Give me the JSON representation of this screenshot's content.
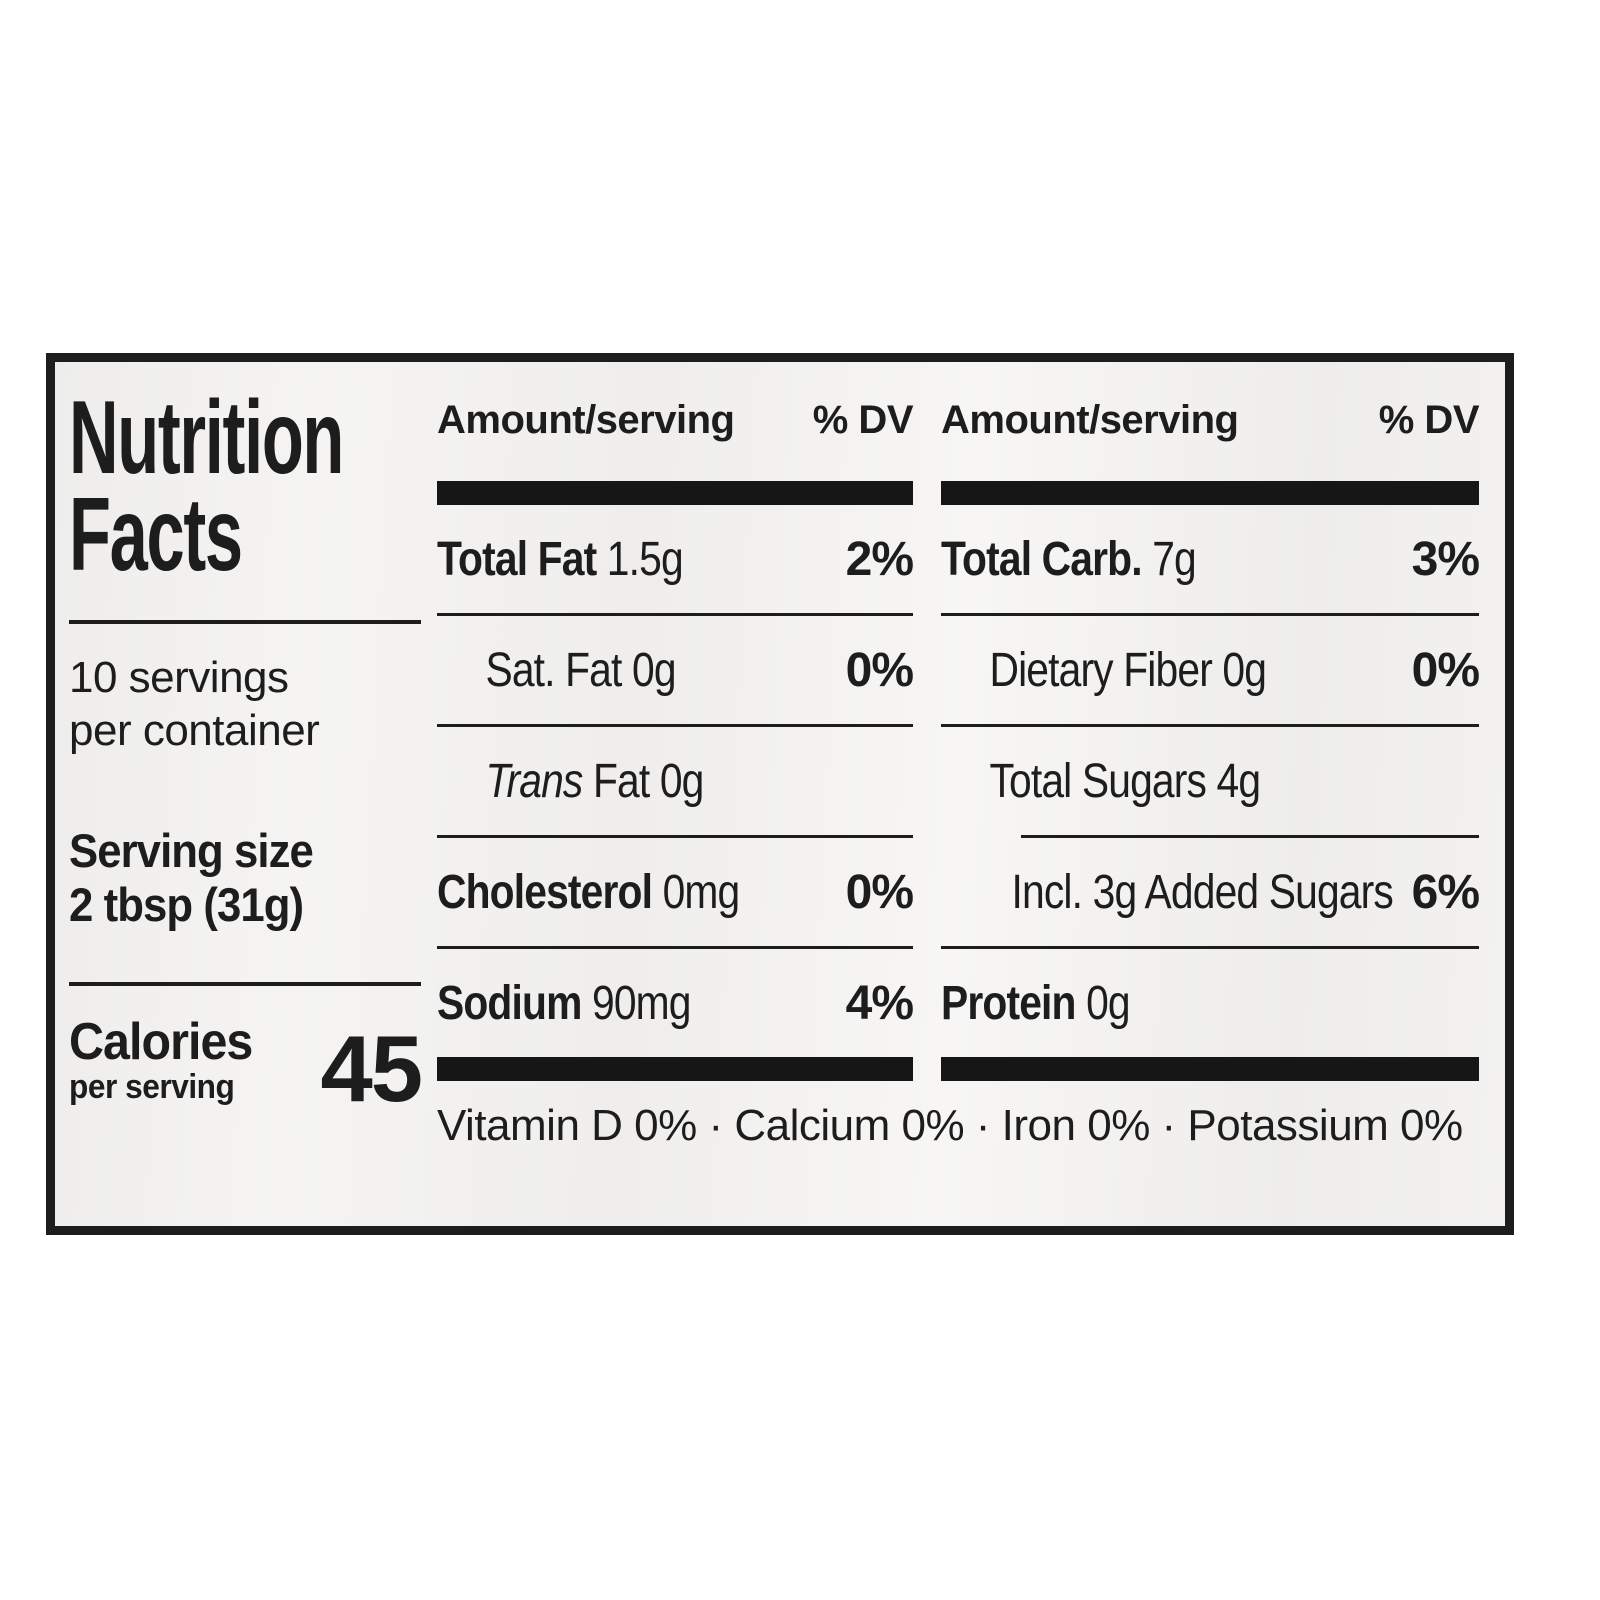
{
  "label": {
    "title_line1": "Nutrition",
    "title_line2": "Facts",
    "servings_line1": "10 servings",
    "servings_line2": "per container",
    "serving_size_label": "Serving size",
    "serving_size_value": "2 tbsp (31g)",
    "calories_label": "Calories",
    "calories_sub": "per serving",
    "calories_value": "45",
    "col_header_amount": "Amount/serving",
    "col_header_dv": "% DV",
    "columns": [
      {
        "rows": [
          {
            "bold": "Total Fat",
            "italic": "",
            "rest": " 1.5g",
            "dv": "2%",
            "indent": 0,
            "rule": "none"
          },
          {
            "bold": "",
            "italic": "",
            "rest": "Sat. Fat 0g",
            "dv": "0%",
            "indent": 1,
            "rule": "full"
          },
          {
            "bold": "",
            "italic": "Trans",
            "rest": " Fat 0g",
            "dv": "",
            "indent": 1,
            "rule": "full"
          },
          {
            "bold": "Cholesterol",
            "italic": "",
            "rest": " 0mg",
            "dv": "0%",
            "indent": 0,
            "rule": "full"
          },
          {
            "bold": "Sodium",
            "italic": "",
            "rest": " 90mg",
            "dv": "4%",
            "indent": 0,
            "rule": "full"
          }
        ]
      },
      {
        "rows": [
          {
            "bold": "Total Carb.",
            "italic": "",
            "rest": " 7g",
            "dv": "3%",
            "indent": 0,
            "rule": "none"
          },
          {
            "bold": "",
            "italic": "",
            "rest": "Dietary Fiber 0g",
            "dv": "0%",
            "indent": 1,
            "rule": "full"
          },
          {
            "bold": "",
            "italic": "",
            "rest": "Total Sugars 4g",
            "dv": "",
            "indent": 1,
            "rule": "full"
          },
          {
            "bold": "",
            "italic": "",
            "rest": "Incl. 3g Added Sugars",
            "dv": "6%",
            "indent": 2,
            "rule": "partial"
          },
          {
            "bold": "Protein",
            "italic": "",
            "rest": " 0g",
            "dv": "",
            "indent": 0,
            "rule": "full"
          }
        ]
      }
    ],
    "footnote": "Vitamin D 0% · Calcium 0% · Iron 0% · Potassium 0%"
  },
  "colors": {
    "ink": "#1d1d1d",
    "bar": "#161616",
    "label_bg": "#f3f2f0",
    "page_bg": "#ffffff"
  }
}
